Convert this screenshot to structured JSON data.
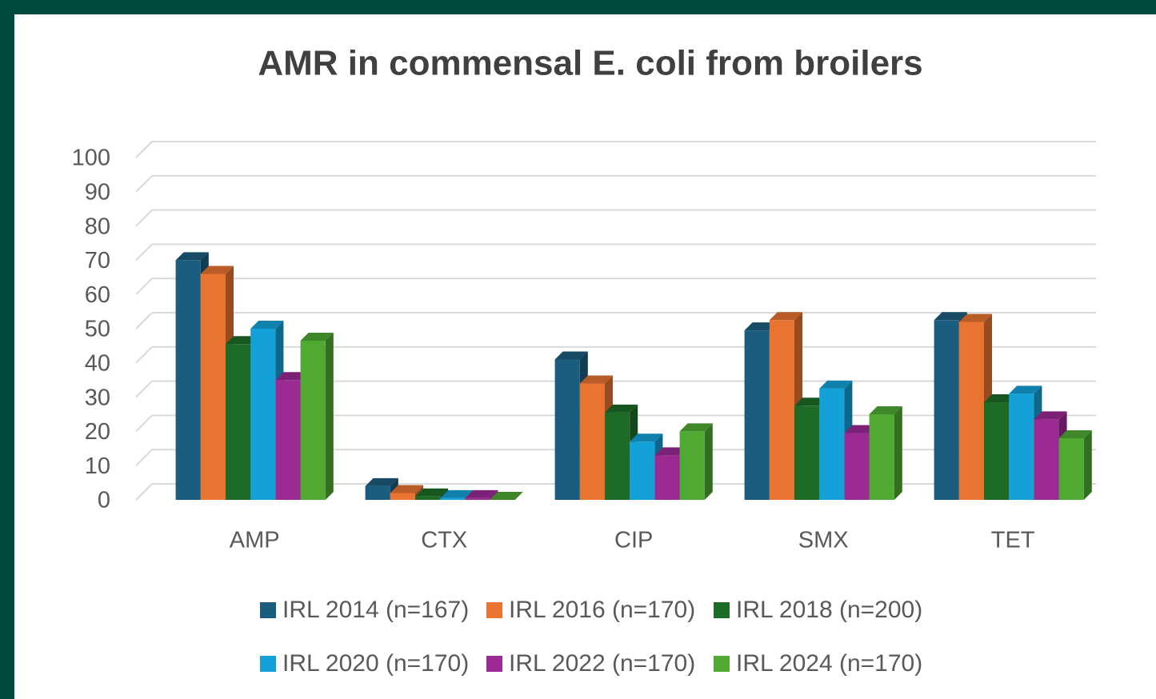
{
  "chart_data": {
    "type": "bar3d",
    "title": "AMR in commensal E. coli from broilers",
    "categories": [
      "AMP",
      "CTX",
      "CIP",
      "SMX",
      "TET"
    ],
    "series": [
      {
        "name": "IRL 2014 (n=167)",
        "color": "#1b5d7e",
        "values": [
          70,
          4,
          41,
          49.5,
          52.5
        ]
      },
      {
        "name": "IRL 2016 (n=170)",
        "color": "#e97331",
        "values": [
          66,
          2,
          34,
          52.5,
          52
        ]
      },
      {
        "name": "IRL 2018 (n=200)",
        "color": "#1e6b28",
        "values": [
          45.5,
          1,
          25.5,
          27.5,
          28.5
        ]
      },
      {
        "name": "IRL 2020 (n=170)",
        "color": "#14a0d8",
        "values": [
          50,
          0.5,
          17,
          32.5,
          31
        ]
      },
      {
        "name": "IRL 2022 (n=170)",
        "color": "#9b2a93",
        "values": [
          35,
          0.5,
          13,
          19.5,
          23.5
        ]
      },
      {
        "name": "IRL 2024 (n=170)",
        "color": "#4fa933",
        "values": [
          46.5,
          0,
          20,
          25,
          18
        ]
      }
    ],
    "ylim": [
      0,
      100
    ],
    "yticks": [
      0,
      10,
      20,
      30,
      40,
      50,
      60,
      70,
      80,
      90,
      100
    ],
    "grid": true
  }
}
